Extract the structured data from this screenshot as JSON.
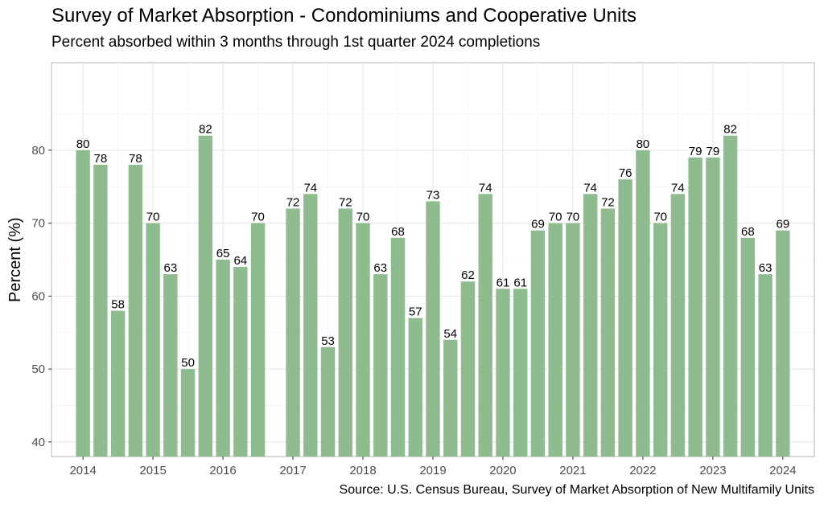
{
  "chart_data": {
    "type": "bar",
    "title": "Survey of Market Absorption - Condominiums and Cooperative Units",
    "subtitle": "Percent absorbed within 3 months through 1st quarter 2024 completions",
    "ylabel": "Percent (%)",
    "xlabel": "",
    "caption": "Source: U.S. Census Bureau, Survey of Market Absorption of New Multifamily Units",
    "color": "#8fbc8f",
    "ylim": [
      38,
      92
    ],
    "yticks": [
      40,
      50,
      60,
      70,
      80
    ],
    "xlim": [
      2013.55,
      2024.45
    ],
    "xticks": [
      2014,
      2015,
      2016,
      2017,
      2018,
      2019,
      2020,
      2021,
      2022,
      2023,
      2024
    ],
    "grid": true,
    "series": [
      {
        "x": [
          "2014 Q1",
          "2014 Q2",
          "2014 Q3",
          "2014 Q4",
          "2015 Q1",
          "2015 Q2",
          "2015 Q3",
          "2015 Q4",
          "2016 Q1",
          "2016 Q2",
          "2016 Q3",
          "2016 Q4",
          "2017 Q1",
          "2017 Q2",
          "2017 Q3",
          "2017 Q4",
          "2018 Q1",
          "2018 Q2",
          "2018 Q3",
          "2018 Q4",
          "2019 Q1",
          "2019 Q2",
          "2019 Q3",
          "2019 Q4",
          "2020 Q1",
          "2020 Q2",
          "2020 Q3",
          "2020 Q4",
          "2021 Q1",
          "2021 Q2",
          "2021 Q3",
          "2021 Q4",
          "2022 Q1",
          "2022 Q2",
          "2022 Q3",
          "2022 Q4",
          "2023 Q1",
          "2023 Q2",
          "2023 Q3",
          "2023 Q4",
          "2024 Q1"
        ],
        "values": [
          80,
          78,
          58,
          78,
          70,
          63,
          50,
          82,
          65,
          64,
          70,
          null,
          72,
          74,
          53,
          72,
          70,
          63,
          68,
          57,
          73,
          54,
          62,
          74,
          61,
          61,
          69,
          70,
          70,
          74,
          72,
          76,
          80,
          70,
          74,
          79,
          79,
          82,
          68,
          63,
          69
        ]
      }
    ]
  }
}
